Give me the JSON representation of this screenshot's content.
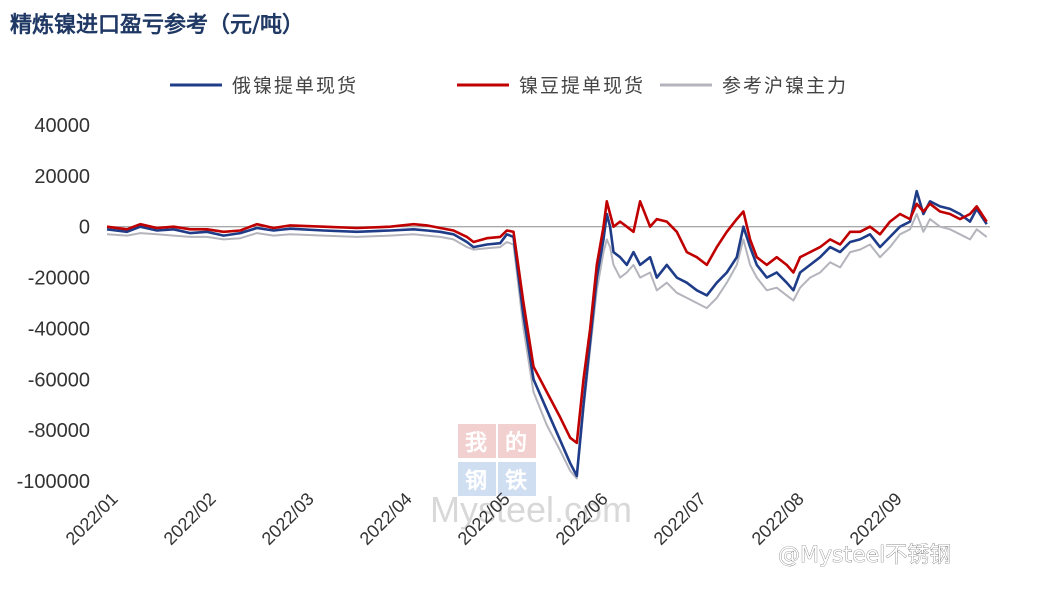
{
  "chart_data": {
    "type": "line",
    "title": "精炼镍进口盈亏参考（元/吨）",
    "ylim": [
      -100000,
      40000
    ],
    "yticks": [
      40000,
      20000,
      0,
      -20000,
      -40000,
      -60000,
      -80000,
      -100000
    ],
    "ytick_labels": [
      "40000",
      "20000",
      "0",
      "-20000",
      "-40000",
      "-60000",
      "-80000",
      "-100000"
    ],
    "x_tick_labels": [
      "2022/01",
      "2022/02",
      "2022/03",
      "2022/04",
      "2022/05",
      "2022/06",
      "2022/07",
      "2022/08",
      "2022/09"
    ],
    "legend_position": "top",
    "x_range": [
      0,
      265
    ],
    "series": [
      {
        "name": "俄镍提单现货",
        "color": "#1f3c88",
        "points": [
          [
            0,
            -1000
          ],
          [
            6,
            -2000
          ],
          [
            10,
            0
          ],
          [
            15,
            -1500
          ],
          [
            20,
            -1000
          ],
          [
            25,
            -2500
          ],
          [
            30,
            -2000
          ],
          [
            35,
            -3500
          ],
          [
            40,
            -2500
          ],
          [
            45,
            -500
          ],
          [
            50,
            -1500
          ],
          [
            55,
            -800
          ],
          [
            65,
            -1500
          ],
          [
            75,
            -2000
          ],
          [
            85,
            -1500
          ],
          [
            92,
            -1000
          ],
          [
            96,
            -1500
          ],
          [
            100,
            -2000
          ],
          [
            104,
            -3000
          ],
          [
            108,
            -6000
          ],
          [
            110,
            -8000
          ],
          [
            114,
            -7000
          ],
          [
            118,
            -6500
          ],
          [
            120,
            -3000
          ],
          [
            122,
            -4000
          ],
          [
            125,
            -35000
          ],
          [
            128,
            -60000
          ],
          [
            132,
            -72000
          ],
          [
            136,
            -84000
          ],
          [
            139,
            -93000
          ],
          [
            141,
            -98000
          ],
          [
            143,
            -70000
          ],
          [
            145,
            -45000
          ],
          [
            147,
            -20000
          ],
          [
            149,
            -5000
          ],
          [
            150,
            5000
          ],
          [
            151,
            0
          ],
          [
            152,
            -10000
          ],
          [
            154,
            -12000
          ],
          [
            156,
            -15000
          ],
          [
            158,
            -10000
          ],
          [
            160,
            -15000
          ],
          [
            163,
            -12000
          ],
          [
            165,
            -20000
          ],
          [
            168,
            -15000
          ],
          [
            171,
            -20000
          ],
          [
            174,
            -22000
          ],
          [
            177,
            -25000
          ],
          [
            180,
            -27000
          ],
          [
            183,
            -22000
          ],
          [
            186,
            -18000
          ],
          [
            189,
            -12000
          ],
          [
            191,
            0
          ],
          [
            193,
            -8000
          ],
          [
            195,
            -15000
          ],
          [
            198,
            -20000
          ],
          [
            201,
            -18000
          ],
          [
            204,
            -22000
          ],
          [
            206,
            -25000
          ],
          [
            208,
            -18000
          ],
          [
            211,
            -15000
          ],
          [
            214,
            -12000
          ],
          [
            217,
            -8000
          ],
          [
            220,
            -10000
          ],
          [
            223,
            -6000
          ],
          [
            226,
            -5000
          ],
          [
            229,
            -3000
          ],
          [
            232,
            -8000
          ],
          [
            235,
            -4000
          ],
          [
            238,
            0
          ],
          [
            241,
            2000
          ],
          [
            243,
            14000
          ],
          [
            245,
            5000
          ],
          [
            247,
            10000
          ],
          [
            250,
            8000
          ],
          [
            253,
            7000
          ],
          [
            256,
            5000
          ],
          [
            259,
            2000
          ],
          [
            261,
            7000
          ],
          [
            264,
            1000
          ]
        ]
      },
      {
        "name": "镍豆提单现货",
        "color": "#c00000",
        "points": [
          [
            0,
            0
          ],
          [
            6,
            -1000
          ],
          [
            10,
            1000
          ],
          [
            15,
            -500
          ],
          [
            20,
            0
          ],
          [
            25,
            -1000
          ],
          [
            30,
            -1000
          ],
          [
            35,
            -2000
          ],
          [
            40,
            -1500
          ],
          [
            45,
            1000
          ],
          [
            50,
            -500
          ],
          [
            55,
            500
          ],
          [
            65,
            0
          ],
          [
            75,
            -500
          ],
          [
            85,
            0
          ],
          [
            92,
            1000
          ],
          [
            96,
            500
          ],
          [
            100,
            -500
          ],
          [
            104,
            -1500
          ],
          [
            108,
            -4000
          ],
          [
            110,
            -6000
          ],
          [
            114,
            -4500
          ],
          [
            118,
            -4000
          ],
          [
            120,
            -1500
          ],
          [
            122,
            -2000
          ],
          [
            125,
            -30000
          ],
          [
            128,
            -55000
          ],
          [
            132,
            -65000
          ],
          [
            136,
            -75000
          ],
          [
            139,
            -83000
          ],
          [
            141,
            -85000
          ],
          [
            143,
            -60000
          ],
          [
            145,
            -40000
          ],
          [
            147,
            -15000
          ],
          [
            149,
            0
          ],
          [
            150,
            10000
          ],
          [
            151,
            5000
          ],
          [
            152,
            0
          ],
          [
            154,
            2000
          ],
          [
            156,
            0
          ],
          [
            158,
            -2000
          ],
          [
            160,
            10000
          ],
          [
            163,
            0
          ],
          [
            165,
            3000
          ],
          [
            168,
            2000
          ],
          [
            171,
            -2000
          ],
          [
            174,
            -10000
          ],
          [
            177,
            -12000
          ],
          [
            180,
            -15000
          ],
          [
            183,
            -8000
          ],
          [
            186,
            -2000
          ],
          [
            189,
            3000
          ],
          [
            191,
            6000
          ],
          [
            193,
            -5000
          ],
          [
            195,
            -12000
          ],
          [
            198,
            -15000
          ],
          [
            201,
            -12000
          ],
          [
            204,
            -15000
          ],
          [
            206,
            -18000
          ],
          [
            208,
            -12000
          ],
          [
            211,
            -10000
          ],
          [
            214,
            -8000
          ],
          [
            217,
            -5000
          ],
          [
            220,
            -7000
          ],
          [
            223,
            -2000
          ],
          [
            226,
            -2000
          ],
          [
            229,
            0
          ],
          [
            232,
            -3000
          ],
          [
            235,
            2000
          ],
          [
            238,
            5000
          ],
          [
            241,
            3000
          ],
          [
            243,
            9000
          ],
          [
            245,
            6000
          ],
          [
            247,
            9000
          ],
          [
            250,
            6000
          ],
          [
            253,
            5000
          ],
          [
            256,
            3000
          ],
          [
            259,
            5000
          ],
          [
            261,
            8000
          ],
          [
            264,
            2000
          ]
        ]
      },
      {
        "name": "参考沪镍主力",
        "color": "#b4b4bc",
        "points": [
          [
            0,
            -3000
          ],
          [
            6,
            -3500
          ],
          [
            10,
            -2500
          ],
          [
            15,
            -3000
          ],
          [
            20,
            -3500
          ],
          [
            25,
            -4000
          ],
          [
            30,
            -4000
          ],
          [
            35,
            -5000
          ],
          [
            40,
            -4500
          ],
          [
            45,
            -2500
          ],
          [
            50,
            -3500
          ],
          [
            55,
            -3000
          ],
          [
            65,
            -3500
          ],
          [
            75,
            -4000
          ],
          [
            85,
            -3500
          ],
          [
            92,
            -3000
          ],
          [
            96,
            -3500
          ],
          [
            100,
            -4000
          ],
          [
            104,
            -5000
          ],
          [
            108,
            -8000
          ],
          [
            110,
            -9000
          ],
          [
            114,
            -8500
          ],
          [
            118,
            -8000
          ],
          [
            120,
            -6000
          ],
          [
            122,
            -7000
          ],
          [
            125,
            -40000
          ],
          [
            128,
            -65000
          ],
          [
            132,
            -78000
          ],
          [
            136,
            -88000
          ],
          [
            139,
            -96000
          ],
          [
            141,
            -99000
          ],
          [
            143,
            -72000
          ],
          [
            145,
            -48000
          ],
          [
            147,
            -25000
          ],
          [
            149,
            -10000
          ],
          [
            150,
            -5000
          ],
          [
            151,
            -8000
          ],
          [
            152,
            -15000
          ],
          [
            154,
            -20000
          ],
          [
            156,
            -18000
          ],
          [
            158,
            -15000
          ],
          [
            160,
            -20000
          ],
          [
            163,
            -18000
          ],
          [
            165,
            -25000
          ],
          [
            168,
            -22000
          ],
          [
            171,
            -26000
          ],
          [
            174,
            -28000
          ],
          [
            177,
            -30000
          ],
          [
            180,
            -32000
          ],
          [
            183,
            -28000
          ],
          [
            186,
            -22000
          ],
          [
            189,
            -15000
          ],
          [
            191,
            -5000
          ],
          [
            193,
            -15000
          ],
          [
            195,
            -20000
          ],
          [
            198,
            -25000
          ],
          [
            201,
            -24000
          ],
          [
            204,
            -27000
          ],
          [
            206,
            -29000
          ],
          [
            208,
            -24000
          ],
          [
            211,
            -20000
          ],
          [
            214,
            -18000
          ],
          [
            217,
            -14000
          ],
          [
            220,
            -16000
          ],
          [
            223,
            -10000
          ],
          [
            226,
            -9000
          ],
          [
            229,
            -7000
          ],
          [
            232,
            -12000
          ],
          [
            235,
            -8000
          ],
          [
            238,
            -3000
          ],
          [
            241,
            -1000
          ],
          [
            243,
            5000
          ],
          [
            245,
            -2000
          ],
          [
            247,
            3000
          ],
          [
            250,
            0
          ],
          [
            253,
            -1000
          ],
          [
            256,
            -3000
          ],
          [
            259,
            -5000
          ],
          [
            261,
            -1000
          ],
          [
            264,
            -4000
          ]
        ]
      }
    ]
  },
  "watermark": {
    "stamp_chars": [
      "我",
      "的",
      "钢",
      "铁"
    ],
    "brand": "Mysteel.com"
  },
  "credit": "@Mysteel不锈钢"
}
